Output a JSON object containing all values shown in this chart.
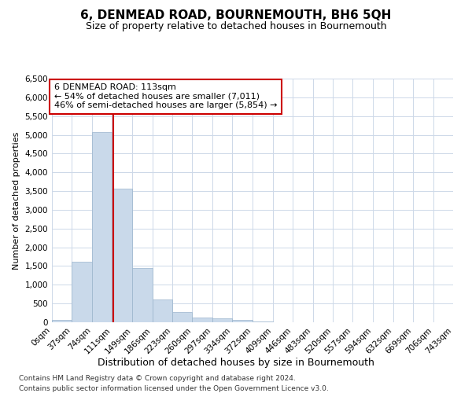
{
  "title": "6, DENMEAD ROAD, BOURNEMOUTH, BH6 5QH",
  "subtitle": "Size of property relative to detached houses in Bournemouth",
  "xlabel": "Distribution of detached houses by size in Bournemouth",
  "ylabel": "Number of detached properties",
  "footnote1": "Contains HM Land Registry data © Crown copyright and database right 2024.",
  "footnote2": "Contains public sector information licensed under the Open Government Licence v3.0.",
  "annotation_title": "6 DENMEAD ROAD: 113sqm",
  "annotation_line1": "← 54% of detached houses are smaller (7,011)",
  "annotation_line2": "46% of semi-detached houses are larger (5,854) →",
  "bar_color": "#c9d9ea",
  "bar_edge_color": "#9ab4cc",
  "grid_color": "#cdd8e8",
  "red_line_color": "#cc0000",
  "annotation_box_color": "#ffffff",
  "annotation_box_edge": "#cc0000",
  "bins": [
    0,
    37,
    74,
    111,
    149,
    186,
    223,
    260,
    297,
    334,
    372,
    409,
    446,
    483,
    520,
    557,
    594,
    632,
    669,
    706,
    743
  ],
  "bin_labels": [
    "0sqm",
    "37sqm",
    "74sqm",
    "111sqm",
    "149sqm",
    "186sqm",
    "223sqm",
    "260sqm",
    "297sqm",
    "334sqm",
    "372sqm",
    "409sqm",
    "446sqm",
    "483sqm",
    "520sqm",
    "557sqm",
    "594sqm",
    "632sqm",
    "669sqm",
    "706sqm",
    "743sqm"
  ],
  "values": [
    55,
    1620,
    5080,
    3560,
    1450,
    600,
    280,
    120,
    100,
    55,
    30,
    10,
    5,
    0,
    0,
    0,
    0,
    0,
    0,
    0
  ],
  "ylim": [
    0,
    6500
  ],
  "yticks": [
    0,
    500,
    1000,
    1500,
    2000,
    2500,
    3000,
    3500,
    4000,
    4500,
    5000,
    5500,
    6000,
    6500
  ],
  "property_sqm": 113,
  "background_color": "#ffffff",
  "title_fontsize": 11,
  "subtitle_fontsize": 9,
  "annotation_fontsize": 8,
  "ylabel_fontsize": 8,
  "xlabel_fontsize": 9,
  "footnote_fontsize": 6.5,
  "tick_fontsize": 7.5
}
